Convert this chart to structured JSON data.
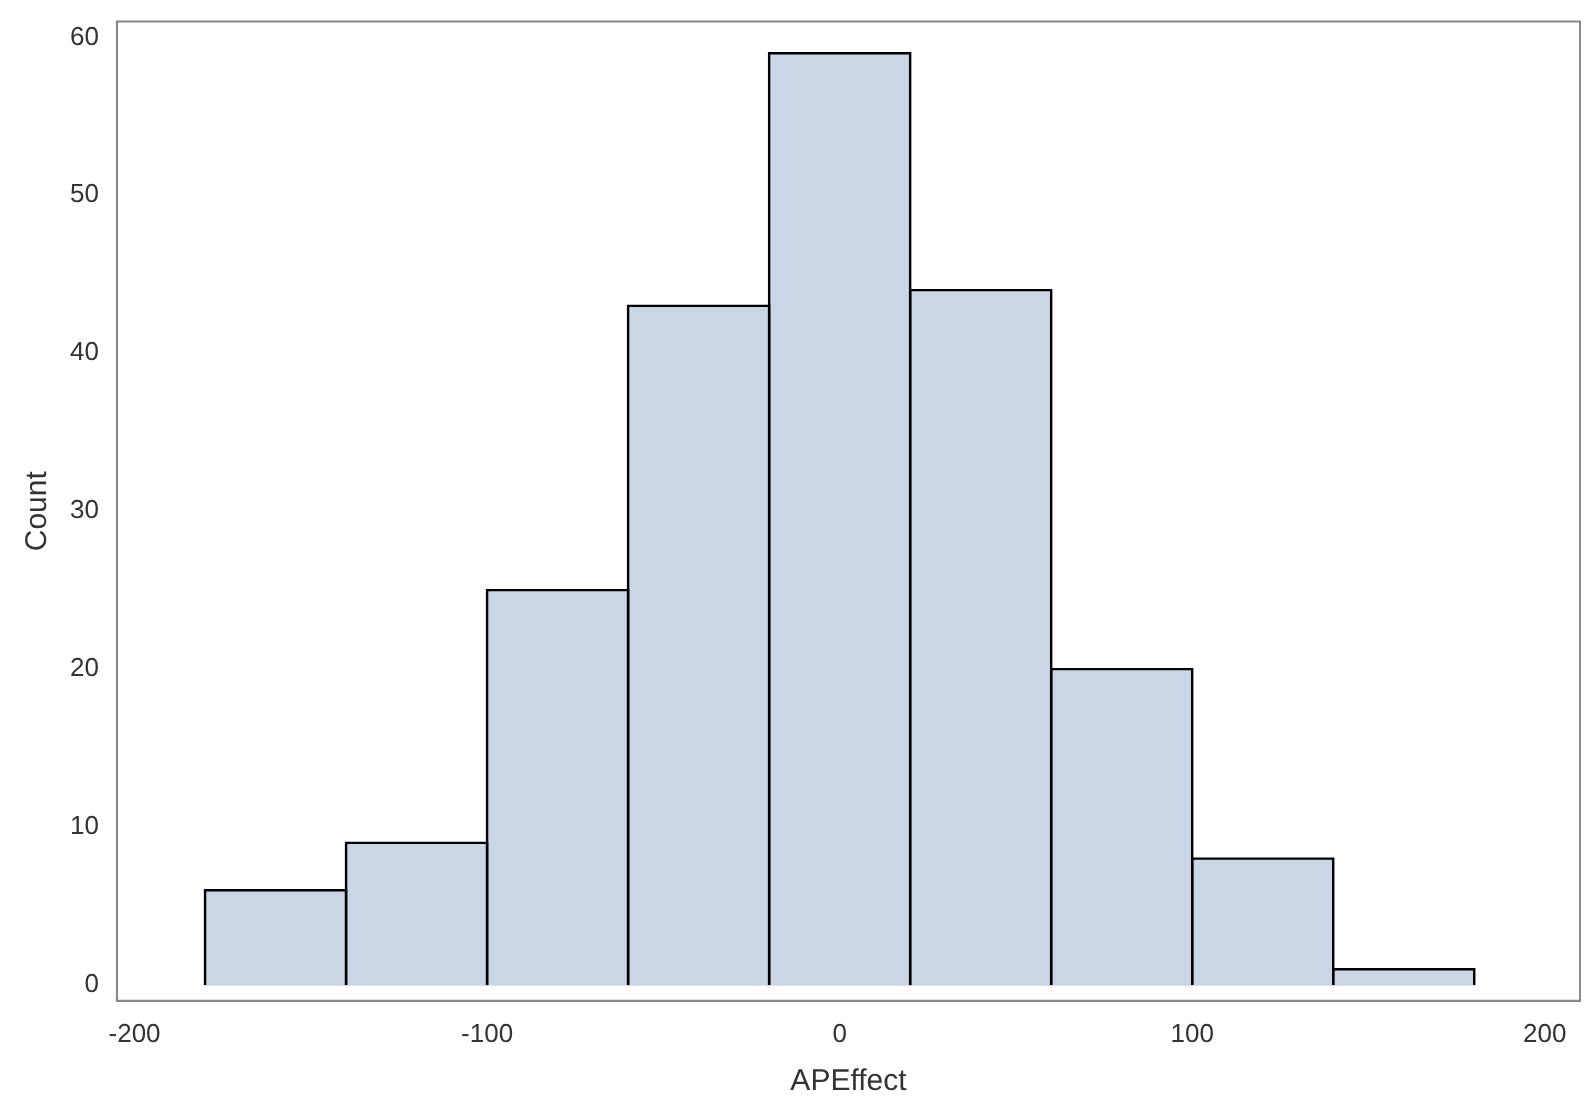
{
  "chart_data": {
    "type": "histogram",
    "xlabel": "APEffect",
    "ylabel": "Count",
    "bins": [
      -180,
      -140,
      -100,
      -60,
      -20,
      20,
      60,
      100,
      140,
      180
    ],
    "values": [
      6,
      9,
      25,
      43,
      59,
      44,
      20,
      8,
      1
    ],
    "color": "#cad5e5",
    "xlim": [
      -205,
      210
    ],
    "xticks": [
      -200,
      -100,
      0,
      100,
      200
    ],
    "ylim": [
      -1,
      61
    ],
    "yticks": [
      0,
      10,
      20,
      30,
      40,
      50,
      60
    ],
    "grid": false,
    "legend": false
  }
}
